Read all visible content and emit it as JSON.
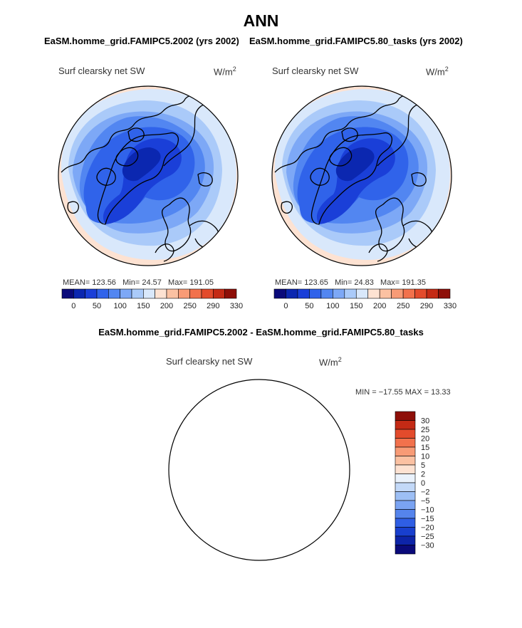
{
  "figure": {
    "title": "ANN",
    "diff_title": "EaSM.homme_grid.FAMIPC5.2002 - EaSM.homme_grid.FAMIPC5.80_tasks"
  },
  "panels": [
    {
      "title": "EaSM.homme_grid.FAMIPC5.2002 (yrs 2002)",
      "variable": "Surf clearsky net SW",
      "units_base": "W/m",
      "units_exp": "2",
      "mean_label": "MEAN=",
      "mean": "123.56",
      "min_label": "Min=",
      "min": "24.57",
      "max_label": "Max=",
      "max": "191.05"
    },
    {
      "title": "EaSM.homme_grid.FAMIPC5.80_tasks (yrs 2002)",
      "variable": "Surf clearsky net SW",
      "units_base": "W/m",
      "units_exp": "2",
      "mean_label": "MEAN=",
      "mean": "123.65",
      "min_label": "Min=",
      "min": "24.83",
      "max_label": "Max=",
      "max": "191.35"
    }
  ],
  "diff_panel": {
    "variable": "Surf clearsky net SW",
    "units_base": "W/m",
    "units_exp": "2",
    "stats": "MIN = −17.55  MAX =  13.33"
  },
  "chart_data": [
    {
      "type": "heatmap",
      "projection": "north polar stereographic",
      "title": "EaSM.homme_grid.FAMIPC5.2002 (yrs 2002)",
      "variable": "Surf clearsky net SW",
      "units": "W/m^2",
      "mean": 123.56,
      "min": 24.57,
      "max": 191.05,
      "contour_levels": [
        0,
        25,
        50,
        75,
        100,
        125,
        150,
        175,
        200,
        225,
        250,
        270,
        290,
        310,
        330
      ],
      "colorbar_tick_labels": [
        "0",
        "50",
        "100",
        "150",
        "200",
        "250",
        "290",
        "330"
      ],
      "colorbar_colors": [
        "#0a0a7a",
        "#0b27b0",
        "#1a3fd8",
        "#3063ea",
        "#5286f1",
        "#7da8f6",
        "#aacaf9",
        "#d9e8fb",
        "#fde2d2",
        "#fbc1a2",
        "#f89b76",
        "#f2714c",
        "#e34b2c",
        "#c42a15",
        "#8e0f08"
      ]
    },
    {
      "type": "heatmap",
      "projection": "north polar stereographic",
      "title": "EaSM.homme_grid.FAMIPC5.80_tasks (yrs 2002)",
      "variable": "Surf clearsky net SW",
      "units": "W/m^2",
      "mean": 123.65,
      "min": 24.83,
      "max": 191.35,
      "contour_levels": [
        0,
        25,
        50,
        75,
        100,
        125,
        150,
        175,
        200,
        225,
        250,
        270,
        290,
        310,
        330
      ],
      "colorbar_tick_labels": [
        "0",
        "50",
        "100",
        "150",
        "200",
        "250",
        "290",
        "330"
      ],
      "colorbar_colors": [
        "#0a0a7a",
        "#0b27b0",
        "#1a3fd8",
        "#3063ea",
        "#5286f1",
        "#7da8f6",
        "#aacaf9",
        "#d9e8fb",
        "#fde2d2",
        "#fbc1a2",
        "#f89b76",
        "#f2714c",
        "#e34b2c",
        "#c42a15",
        "#8e0f08"
      ]
    },
    {
      "type": "heatmap",
      "projection": "north polar stereographic",
      "title": "EaSM.homme_grid.FAMIPC5.2002 - EaSM.homme_grid.FAMIPC5.80_tasks",
      "variable": "Surf clearsky net SW",
      "units": "W/m^2",
      "min": -17.55,
      "max": 13.33,
      "contour_levels": [
        -30,
        -25,
        -20,
        -15,
        -10,
        -5,
        -2,
        0,
        2,
        5,
        10,
        15,
        20,
        25,
        30
      ],
      "colorbar_tick_labels": [
        "30",
        "25",
        "20",
        "15",
        "10",
        "5",
        "2",
        "0",
        "−2",
        "−5",
        "−10",
        "−15",
        "−20",
        "−25",
        "−30"
      ],
      "colorbar_colors": [
        "#8e0f08",
        "#c42a15",
        "#e34b2c",
        "#f2714c",
        "#f89b76",
        "#fbc1a2",
        "#fde2d2",
        "#eaf2fc",
        "#c3d9f8",
        "#9dbff5",
        "#7aa3f2",
        "#5584ec",
        "#2f5ee4",
        "#183fce",
        "#0d24a8",
        "#0a0a7a"
      ]
    }
  ]
}
